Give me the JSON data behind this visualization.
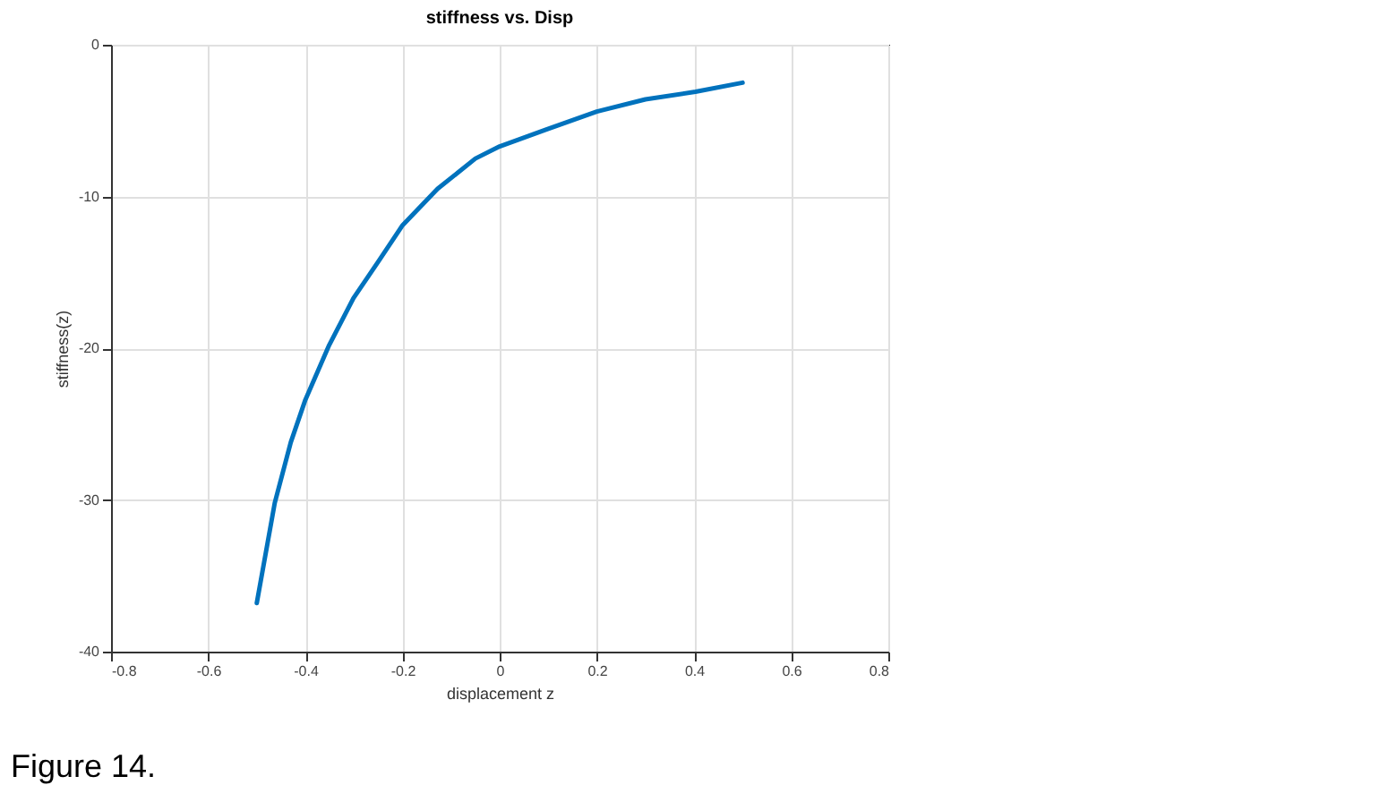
{
  "chart_data": {
    "type": "line",
    "title": "stiffness vs. Disp",
    "xlabel": "displacement z",
    "ylabel": "stiffness(z)",
    "annotations": [
      "Figure 14."
    ],
    "x": [
      -0.5,
      -0.463,
      -0.43,
      -0.4,
      -0.351,
      -0.301,
      -0.25,
      -0.2,
      -0.128,
      -0.05,
      0,
      0.095,
      0.2,
      0.3,
      0.403,
      0.5
    ],
    "series": [
      {
        "color": "#0072bd",
        "values": [
          -36.8,
          -30.2,
          -26.2,
          -23.4,
          -19.8,
          -16.7,
          -14.3,
          -11.9,
          -9.5,
          -7.5,
          -6.7,
          -5.6,
          -4.4,
          -3.6,
          -3.1,
          -2.5
        ]
      }
    ],
    "xlim": [
      -0.8,
      0.8
    ],
    "xticks": [
      -0.8,
      -0.6,
      -0.4,
      -0.2,
      0,
      0.2,
      0.4,
      0.6,
      0.8
    ],
    "ylim": [
      -40,
      0
    ],
    "yticks": [
      -40,
      -30,
      -20,
      -10,
      0
    ],
    "grid": true
  }
}
